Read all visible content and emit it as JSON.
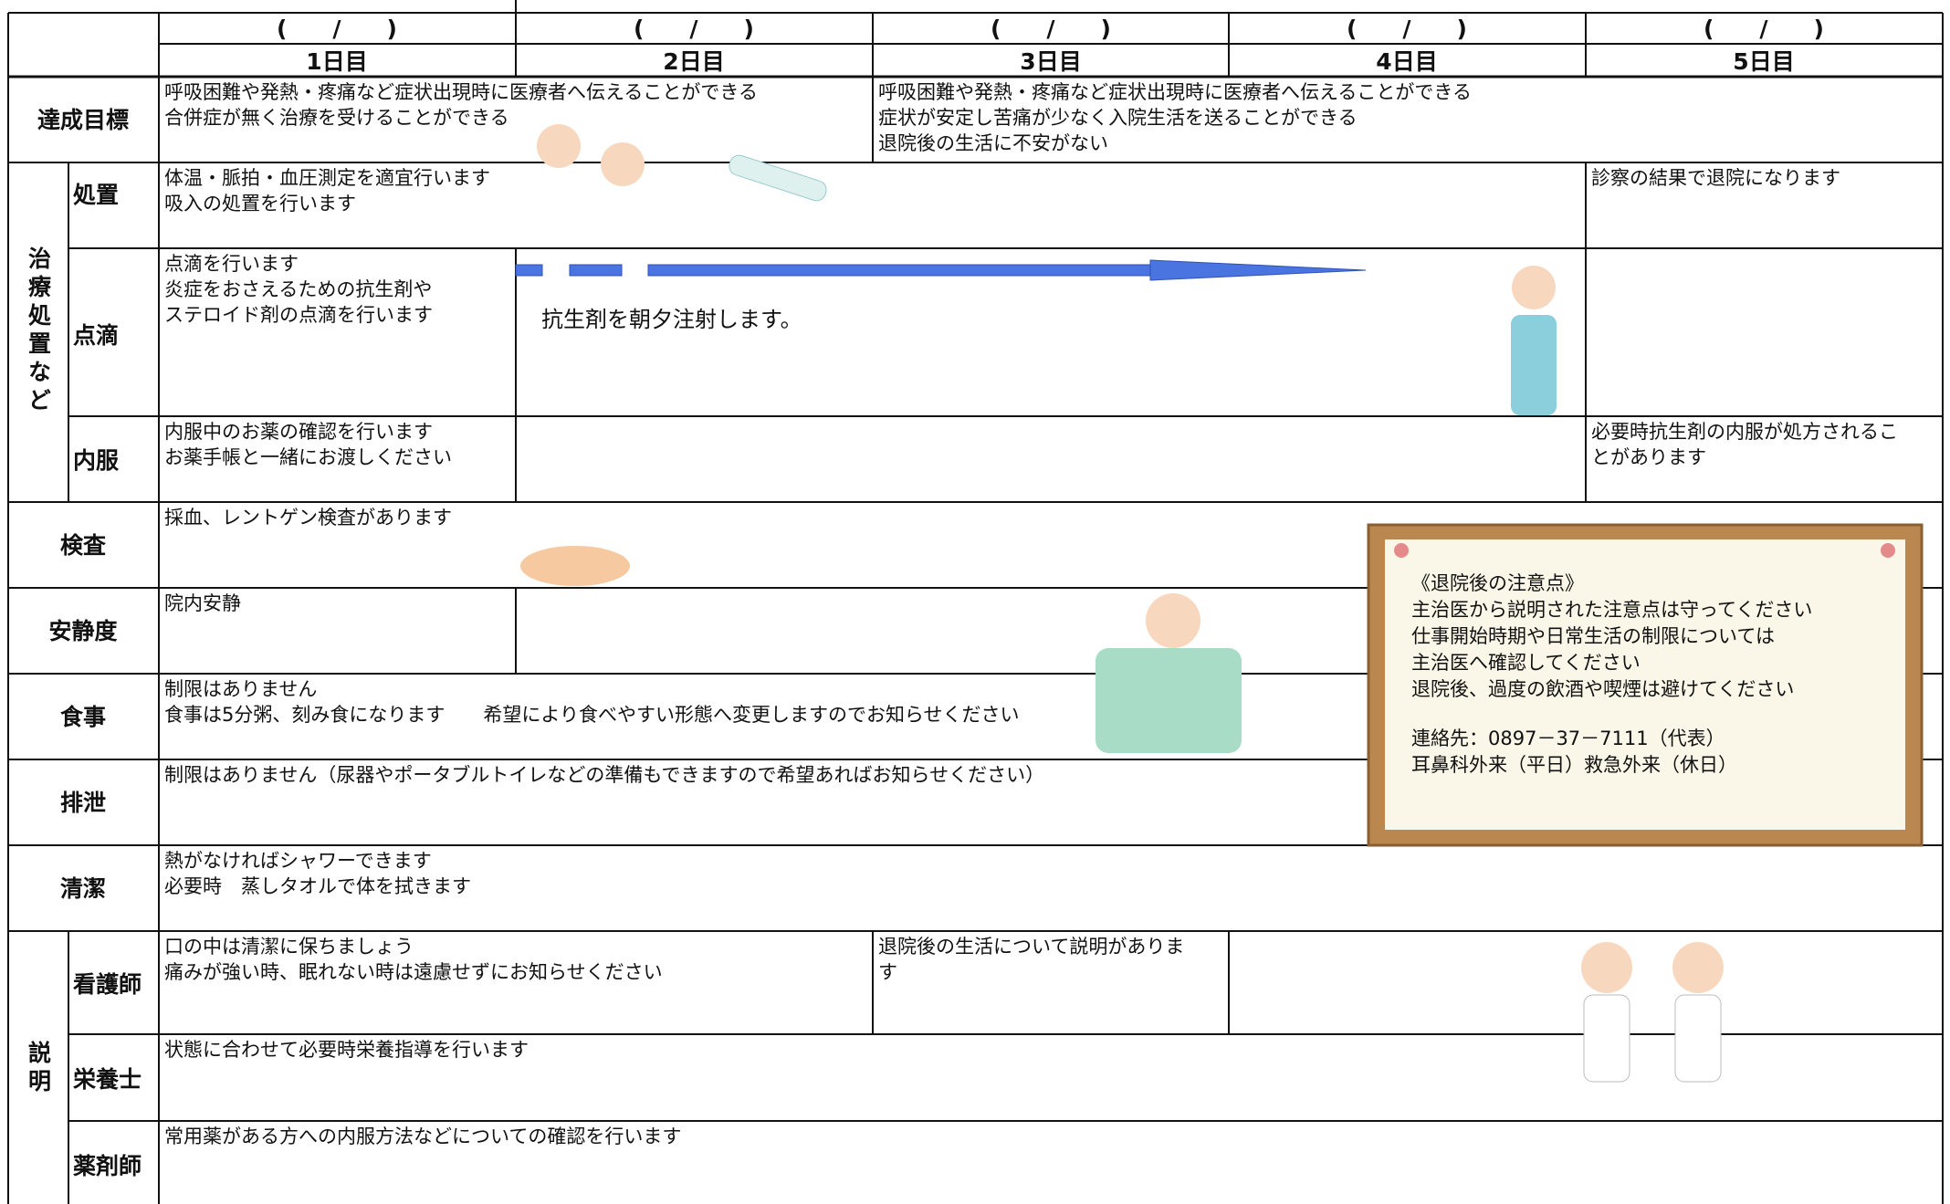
{
  "header": {
    "dates": [
      "(　　/　　)",
      "(　　/　　)",
      "(　　/　　)",
      "(　　/　　)",
      "(　　/　　)"
    ],
    "days": [
      "1日目",
      "2日目",
      "3日目",
      "4日目",
      "5日目"
    ]
  },
  "goals": {
    "label": "達成目標",
    "day1": [
      "呼吸困難や発熱・疼痛など症状出現時に医療者へ伝えることができる",
      "合併症が無く治療を受けることができる"
    ],
    "day3": [
      "呼吸困難や発熱・疼痛など症状出現時に医療者へ伝えることができる",
      "症状が安定し苦痛が少なく入院生活を送ることができる",
      "退院後の生活に不安がない"
    ]
  },
  "treatment": {
    "label": "治療処置など",
    "procedure": {
      "label": "処置",
      "day1": [
        "体温・脈拍・血圧測定を適宜行います",
        "吸入の処置を行います"
      ],
      "day5": [
        "診察の結果で退院になります"
      ]
    },
    "drip": {
      "label": "点滴",
      "day1": [
        "点滴を行います",
        "炎症をおさえるための抗生剤や",
        "ステロイド剤の点滴を行います"
      ],
      "note": "抗生剤を朝夕注射します。"
    },
    "oral": {
      "label": "内服",
      "day1": [
        "内服中のお薬の確認を行います",
        "お薬手帳と一緒にお渡しください"
      ],
      "day5": [
        "必要時抗生剤の内服が処方されるこ",
        "とがあります"
      ]
    }
  },
  "exam": {
    "label": "検査",
    "day1": [
      "採血、レントゲン検査があります"
    ]
  },
  "rest": {
    "label": "安静度",
    "day1": [
      "院内安静"
    ]
  },
  "meal": {
    "label": "食事",
    "day1": [
      "制限はありません",
      "食事は5分粥、刻み食になります　　希望により食べやすい形態へ変更しますのでお知らせください"
    ]
  },
  "excretion": {
    "label": "排泄",
    "day1": [
      "制限はありません（尿器やポータブルトイレなどの準備もできますので希望あればお知らせください）"
    ]
  },
  "hygiene": {
    "label": "清潔",
    "day1": [
      "熱がなければシャワーできます",
      "必要時　蒸しタオルで体を拭きます"
    ]
  },
  "explanation": {
    "label": "説明",
    "nurse": {
      "label": "看護師",
      "day1": [
        "口の中は清潔に保ちましょう",
        "痛みが強い時、眠れない時は遠慮せずにお知らせください"
      ],
      "day3": [
        "退院後の生活について説明がありま",
        "す"
      ]
    },
    "dietitian": {
      "label": "栄養士",
      "day1": [
        "状態に合わせて必要時栄養指導を行います"
      ]
    },
    "pharmacist": {
      "label": "薬剤師",
      "day1": [
        "常用薬がある方への内服方法などについての確認を行います"
      ]
    }
  },
  "notice": {
    "lines": [
      "《退院後の注意点》",
      "主治医から説明された注意点は守ってください",
      "仕事開始時期や日常生活の制限については",
      "主治医へ確認してください",
      "退院後、過度の飲酒や喫煙は避けてください"
    ],
    "contact": [
      "連絡先：0897－37－7111（代表）",
      "耳鼻科外来（平日）救急外来（休日）"
    ]
  }
}
